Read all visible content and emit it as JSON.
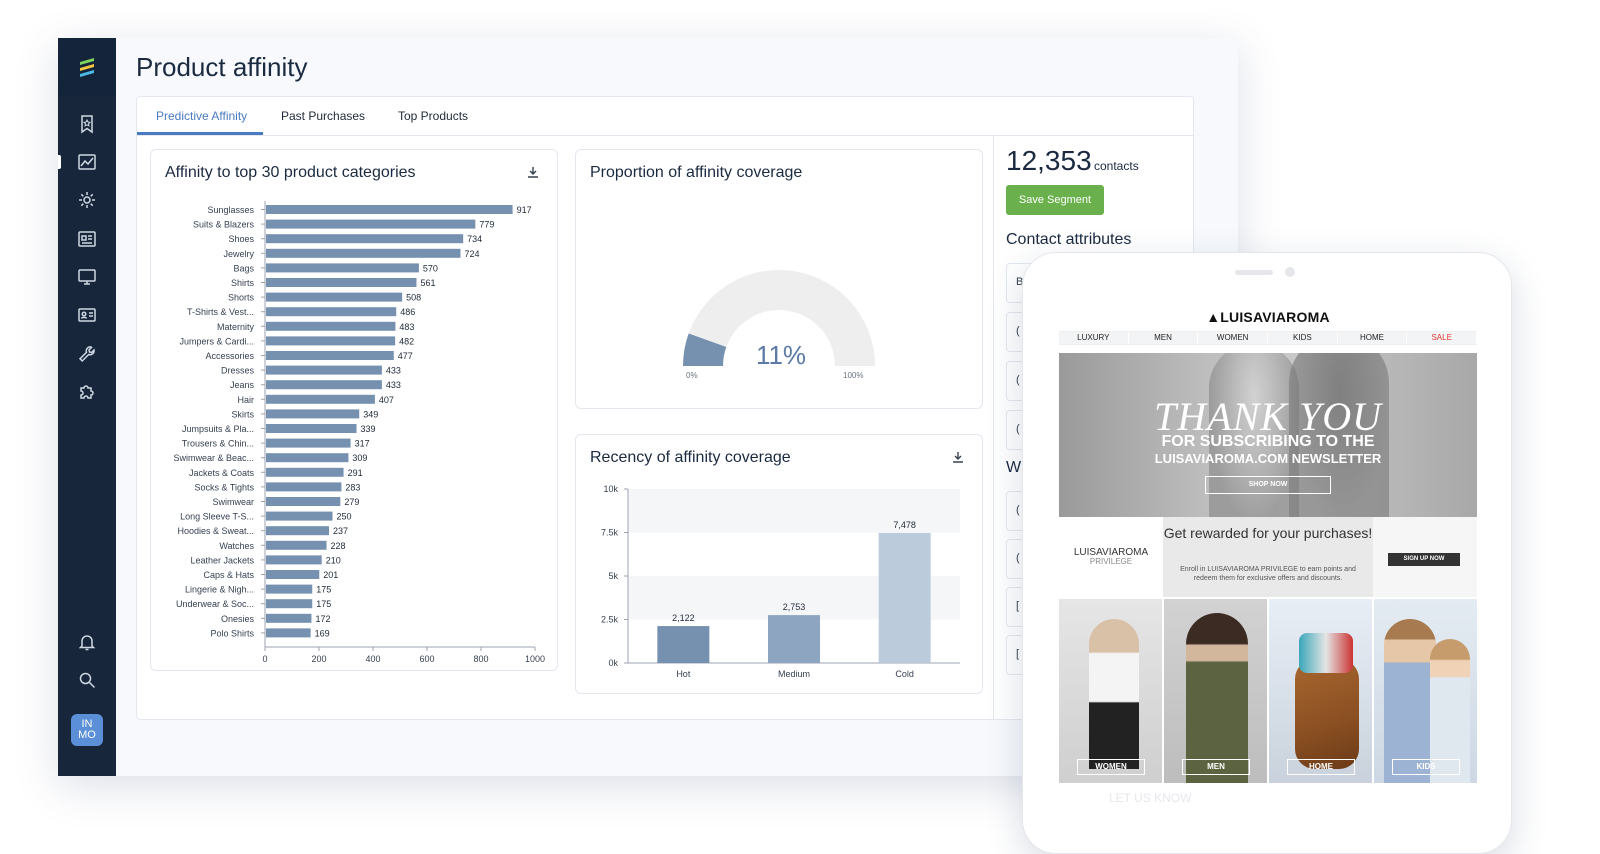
{
  "page": {
    "title": "Product affinity"
  },
  "sidebar": {
    "icons": [
      "bookmark-star-icon",
      "chart-line-icon",
      "gear-icon",
      "newspaper-icon",
      "monitor-icon",
      "contact-card-icon",
      "wrench-icon",
      "puzzle-icon",
      "bell-icon",
      "search-icon"
    ],
    "avatar_line1": "IN",
    "avatar_line2": "MO"
  },
  "tabs": [
    {
      "label": "Predictive Affinity",
      "active": true
    },
    {
      "label": "Past Purchases",
      "active": false
    },
    {
      "label": "Top Products",
      "active": false
    }
  ],
  "affinity_card": {
    "title": "Affinity to top 30 product categories"
  },
  "coverage_card": {
    "title": "Proportion of affinity coverage",
    "value_label": "11%",
    "min_label": "0%",
    "max_label": "100%"
  },
  "recency_card": {
    "title": "Recency of affinity coverage"
  },
  "contacts": {
    "count": "12,353",
    "label": "contacts",
    "save_label": "Save Segment"
  },
  "attributes": {
    "title": "Contact attributes",
    "letters": [
      "B",
      "(",
      "(",
      "(",
      "(",
      "(",
      "[",
      "["
    ],
    "w_letter": "W"
  },
  "chart_data": [
    {
      "type": "bar",
      "orientation": "horizontal",
      "title": "Affinity to top 30 product categories",
      "categories": [
        "Sunglasses",
        "Suits & Blazers",
        "Shoes",
        "Jewelry",
        "Bags",
        "Shirts",
        "Shorts",
        "T-Shirts & Vest...",
        "Maternity",
        "Jumpers & Cardi...",
        "Accessories",
        "Dresses",
        "Jeans",
        "Hair",
        "Skirts",
        "Jumpsuits & Pla...",
        "Trousers & Chin...",
        "Swimwear & Beac...",
        "Jackets & Coats",
        "Socks & Tights",
        "Swimwear",
        "Long Sleeve T-S...",
        "Hoodies & Sweat...",
        "Watches",
        "Leather Jackets",
        "Caps & Hats",
        "Lingerie & Nigh...",
        "Underwear & Soc...",
        "Onesies",
        "Polo Shirts"
      ],
      "values": [
        917,
        779,
        734,
        724,
        570,
        561,
        508,
        486,
        483,
        482,
        477,
        433,
        433,
        407,
        349,
        339,
        317,
        309,
        291,
        283,
        279,
        250,
        237,
        228,
        210,
        201,
        175,
        175,
        172,
        169
      ],
      "xlim": [
        0,
        1000
      ],
      "xticks": [
        "0",
        "200",
        "400",
        "600",
        "800",
        "1000"
      ],
      "color": "#7690b0"
    },
    {
      "type": "gauge",
      "title": "Proportion of affinity coverage",
      "value": 11,
      "range": [
        0,
        100
      ],
      "color": "#7690b0"
    },
    {
      "type": "bar",
      "title": "Recency of affinity coverage",
      "categories": [
        "Hot",
        "Medium",
        "Cold"
      ],
      "values": [
        2122,
        2753,
        7478
      ],
      "value_labels": [
        "2,122",
        "2,753",
        "7,478"
      ],
      "ylim": [
        0,
        10000
      ],
      "yticks": [
        "0k",
        "2.5k",
        "5k",
        "7.5k",
        "10k"
      ],
      "colors": [
        "#7690b0",
        "#8ea5c2",
        "#bccbdb"
      ]
    }
  ],
  "phone": {
    "brand": "LUISAVIAROMA",
    "nav": [
      "LUXURY",
      "MEN",
      "WOMEN",
      "KIDS",
      "HOME",
      "SALE"
    ],
    "hero_title": "THANK YOU",
    "hero_sub1": "FOR SUBSCRIBING TO THE",
    "hero_sub2": "LUISAVIAROMA.COM NEWSLETTER",
    "hero_button": "SHOP NOW",
    "promo_logo": "LUISAVIAROMA",
    "promo_logo_sub": "PRIVILEGE",
    "promo_heading": "Get rewarded for your purchases!",
    "promo_text": "Enroll in LUISAVIAROMA PRIVILEGE to earn points and redeem them for exclusive offers and discounts.",
    "promo_button": "SIGN UP NOW",
    "tiles": [
      "WOMEN",
      "MEN",
      "HOME",
      "KIDS"
    ],
    "footer": "LET US KNOW"
  }
}
